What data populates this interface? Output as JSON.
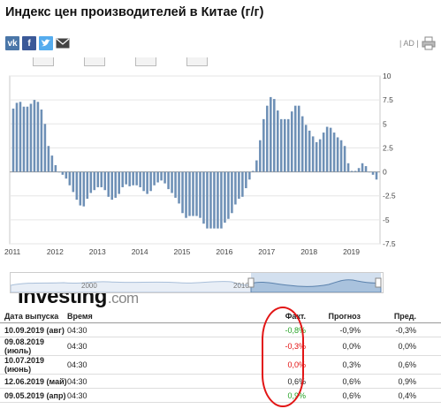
{
  "page_title": "Индекс цен производителей в Китае (г/г)",
  "share_icons": [
    "vk-icon",
    "facebook-icon",
    "twitter-icon",
    "mail-icon"
  ],
  "ad_label": "| AD |",
  "logo": {
    "name": "Investing",
    "domain": ".com"
  },
  "navigator": {
    "year_labels": [
      "2000",
      "2010"
    ]
  },
  "chart_data": {
    "type": "bar",
    "bar_color": "#6e90b6",
    "xlabel": "",
    "ylabel": "",
    "ylim": [
      -7.5,
      10
    ],
    "yticks": [
      10,
      7.5,
      5,
      2.5,
      0,
      -2.5,
      -5,
      -7.5
    ],
    "ytick_labels": [
      "10",
      "7.5",
      "5",
      "2.5",
      "0",
      "-2.5",
      "-5",
      "-7.5"
    ],
    "xtick_labels": [
      "2011",
      "2012",
      "2013",
      "2014",
      "2015",
      "2016",
      "2017",
      "2018",
      "2019"
    ],
    "x_start": "2011-01",
    "values": [
      6.6,
      7.2,
      7.3,
      6.8,
      6.8,
      7.1,
      7.5,
      7.3,
      6.5,
      5.0,
      2.7,
      1.7,
      0.7,
      0.0,
      -0.3,
      -0.7,
      -1.4,
      -2.1,
      -2.9,
      -3.5,
      -3.6,
      -2.8,
      -2.2,
      -1.9,
      -1.6,
      -1.6,
      -1.9,
      -2.6,
      -2.9,
      -2.7,
      -2.3,
      -1.6,
      -1.3,
      -1.5,
      -1.4,
      -1.4,
      -1.6,
      -2.0,
      -2.3,
      -2.0,
      -1.4,
      -1.1,
      -0.9,
      -1.2,
      -1.8,
      -2.2,
      -2.7,
      -3.3,
      -4.3,
      -4.8,
      -4.6,
      -4.6,
      -4.6,
      -4.8,
      -5.4,
      -5.9,
      -5.9,
      -5.9,
      -5.9,
      -5.9,
      -5.3,
      -4.9,
      -4.3,
      -3.4,
      -2.8,
      -2.6,
      -1.7,
      -0.8,
      0.1,
      1.2,
      3.3,
      5.5,
      6.9,
      7.8,
      7.6,
      6.4,
      5.5,
      5.5,
      5.5,
      6.3,
      6.9,
      6.9,
      5.8,
      4.9,
      4.3,
      3.7,
      3.1,
      3.4,
      4.1,
      4.7,
      4.6,
      4.1,
      3.6,
      3.3,
      2.7,
      0.9,
      0.1,
      0.1,
      0.4,
      0.9,
      0.6,
      0.0,
      -0.3,
      -0.8
    ]
  },
  "table": {
    "headers": {
      "date": "Дата выпуска",
      "time": "Время",
      "actual": "Факт.",
      "forecast": "Прогноз",
      "previous": "Пред."
    },
    "rows": [
      {
        "date": "10.09.2019 (авг)",
        "time": "04:30",
        "actual": "-0,8%",
        "actual_status": "pos",
        "forecast": "-0,9%",
        "previous": "-0,3%"
      },
      {
        "date": "09.08.2019 (июль)",
        "time": "04:30",
        "actual": "-0,3%",
        "actual_status": "neg",
        "forecast": "0,0%",
        "previous": "0,0%"
      },
      {
        "date": "10.07.2019 (июнь)",
        "time": "04:30",
        "actual": "0,0%",
        "actual_status": "neg",
        "forecast": "0,3%",
        "previous": "0,6%"
      },
      {
        "date": "12.06.2019 (май)",
        "time": "04:30",
        "actual": "0,6%",
        "actual_status": "neutral",
        "forecast": "0,6%",
        "previous": "0,9%"
      },
      {
        "date": "09.05.2019 (апр)",
        "time": "04:30",
        "actual": "0,9%",
        "actual_status": "pos",
        "forecast": "0,6%",
        "previous": "0,4%"
      }
    ]
  },
  "colors": {
    "positive": "#25a325",
    "negative": "#e30e0e",
    "annotation": "#e21515"
  }
}
